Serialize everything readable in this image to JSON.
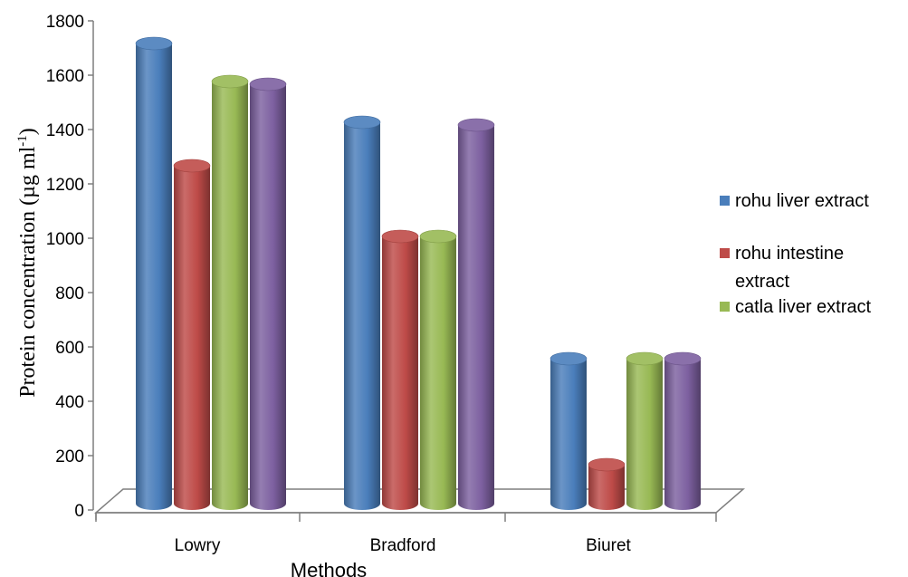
{
  "chart_data": {
    "type": "bar",
    "categories": [
      "Lowry",
      "Bradford",
      "Biuret"
    ],
    "xlabel": "Methods",
    "ylabel": "Protein concentration (µg ml",
    "ylabel_sup": "-1",
    "ylabel_close": ")",
    "ylim": [
      0,
      1800
    ],
    "yticks": [
      0,
      200,
      400,
      600,
      800,
      1000,
      1200,
      1400,
      1600,
      1800
    ],
    "grid": false,
    "legend_position": "right",
    "series": [
      {
        "name": "rohu liver extract",
        "color": "#4a7ebb",
        "values": [
          1750,
          1460,
          590
        ]
      },
      {
        "name": "rohu intestine extract",
        "color": "#be4b48",
        "values": [
          1300,
          1040,
          200
        ]
      },
      {
        "name": "catla liver extract",
        "color": "#98b954",
        "values": [
          1610,
          1040,
          590
        ]
      },
      {
        "name": "",
        "color": "#7d60a0",
        "values": [
          1600,
          1450,
          590
        ]
      }
    ]
  }
}
